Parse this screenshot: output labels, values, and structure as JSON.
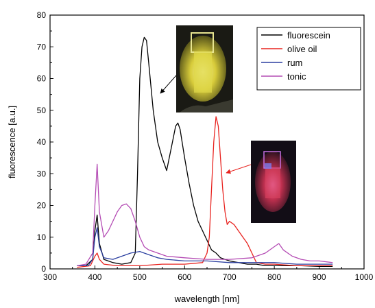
{
  "chart_data": {
    "type": "line",
    "title": "",
    "xlabel": "wavelength [nm]",
    "ylabel": "fluorescence [a.u.]",
    "xlim": [
      300,
      1000
    ],
    "ylim": [
      0,
      80
    ],
    "xticks": [
      300,
      400,
      500,
      600,
      700,
      800,
      900,
      1000
    ],
    "yticks": [
      0,
      10,
      20,
      30,
      40,
      50,
      60,
      70,
      80
    ],
    "grid": false,
    "legend_position": "top-right",
    "series": [
      {
        "name": "fluorescein",
        "color": "#000000",
        "x": [
          360,
          380,
          395,
          400,
          405,
          410,
          420,
          440,
          460,
          480,
          490,
          495,
          500,
          505,
          510,
          515,
          520,
          530,
          540,
          550,
          560,
          570,
          580,
          585,
          590,
          600,
          610,
          620,
          630,
          640,
          650,
          660,
          670,
          680,
          690,
          700,
          720,
          740,
          760,
          780,
          800,
          830,
          860,
          900,
          930
        ],
        "y": [
          1,
          1,
          3,
          12,
          17,
          8,
          3,
          2,
          1.5,
          2,
          5,
          30,
          60,
          70,
          73,
          72,
          65,
          50,
          40,
          35,
          31,
          38,
          45,
          46,
          44,
          35,
          27,
          20,
          15,
          12,
          9,
          6,
          5,
          3.5,
          3,
          2.5,
          2,
          1.5,
          1.5,
          1,
          1,
          1,
          1,
          0.8,
          0.8
        ]
      },
      {
        "name": "olive oil",
        "color": "#e8231f",
        "x": [
          360,
          390,
          400,
          405,
          410,
          420,
          450,
          500,
          550,
          600,
          640,
          650,
          655,
          660,
          665,
          670,
          675,
          680,
          685,
          690,
          695,
          700,
          710,
          720,
          730,
          740,
          750,
          760,
          780,
          800,
          850,
          900,
          930
        ],
        "y": [
          0.5,
          1,
          4,
          5,
          3,
          1.5,
          1,
          1,
          1.5,
          1.5,
          2,
          5,
          10,
          25,
          40,
          48,
          45,
          35,
          25,
          18,
          14,
          15,
          14,
          12,
          10,
          8,
          5,
          2,
          1.5,
          1.5,
          1,
          1,
          1
        ]
      },
      {
        "name": "rum",
        "color": "#2b3fa0",
        "x": [
          360,
          385,
          395,
          400,
          405,
          410,
          420,
          440,
          460,
          480,
          500,
          520,
          540,
          560,
          600,
          650,
          700,
          750,
          800,
          850,
          900,
          930
        ],
        "y": [
          1,
          1,
          3,
          10,
          13,
          7,
          3.5,
          3,
          4,
          5,
          5.5,
          4.5,
          3.5,
          3,
          2.5,
          2.5,
          2,
          2,
          2,
          1.5,
          1.5,
          1.5
        ]
      },
      {
        "name": "tonic",
        "color": "#b44bb4",
        "x": [
          360,
          380,
          395,
          400,
          405,
          410,
          420,
          430,
          440,
          450,
          460,
          470,
          480,
          490,
          500,
          510,
          520,
          540,
          560,
          600,
          650,
          700,
          750,
          780,
          800,
          810,
          820,
          840,
          860,
          880,
          900,
          930
        ],
        "y": [
          1,
          1.5,
          5,
          20,
          33,
          18,
          10,
          12,
          15,
          18,
          20,
          20.5,
          19,
          15,
          10,
          7,
          6,
          5,
          4,
          3.5,
          3,
          3,
          3.5,
          5,
          7,
          8,
          6,
          4,
          3,
          2.5,
          2.5,
          2
        ]
      }
    ],
    "insets": [
      {
        "name": "fluorescein-cuvette-photo",
        "points_to_series": "fluorescein",
        "arrow_color": "#000000"
      },
      {
        "name": "olive-oil-cuvette-photo",
        "points_to_series": "olive oil",
        "arrow_color": "#e8231f"
      }
    ]
  }
}
